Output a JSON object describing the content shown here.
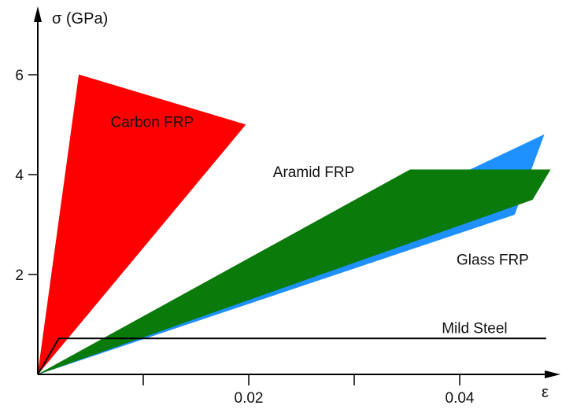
{
  "chart_data": {
    "type": "area",
    "title": "",
    "xlabel": "ε",
    "ylabel": "σ (GPa)",
    "xlim": [
      0,
      0.048
    ],
    "ylim": [
      0,
      6.9
    ],
    "x_ticks": [
      {
        "value": 0.01,
        "label": ""
      },
      {
        "value": 0.02,
        "label": "0.02"
      },
      {
        "value": 0.03,
        "label": ""
      },
      {
        "value": 0.04,
        "label": "0.04"
      }
    ],
    "y_ticks": [
      {
        "value": 2,
        "label": "2"
      },
      {
        "value": 4,
        "label": "4"
      },
      {
        "value": 6,
        "label": "6"
      }
    ],
    "grid": false,
    "legend": "none",
    "series": [
      {
        "name": "Glass FRP",
        "kind": "region",
        "color": "#1e90ff",
        "points": [
          [
            0,
            0
          ],
          [
            0.048,
            4.8
          ],
          [
            0.0452,
            3.2
          ]
        ]
      },
      {
        "name": "Aramid FRP",
        "kind": "region",
        "color": "#0a7a0a",
        "points": [
          [
            0,
            0
          ],
          [
            0.0353,
            4.1
          ],
          [
            0.0486,
            4.1
          ],
          [
            0.0469,
            3.5
          ]
        ]
      },
      {
        "name": "Carbon FRP",
        "kind": "region",
        "color": "#ff0000",
        "points": [
          [
            0,
            0
          ],
          [
            0.0039,
            6.0
          ],
          [
            0.0197,
            5.0
          ]
        ]
      },
      {
        "name": "Mild Steel",
        "kind": "line",
        "color": "#000000",
        "points": [
          [
            0,
            0
          ],
          [
            0.002,
            0.72
          ],
          [
            0.0482,
            0.72
          ]
        ]
      }
    ],
    "annotations": [
      {
        "text": "Carbon FRP",
        "x": 0.0069,
        "y": 4.95
      },
      {
        "text": "Aramid FRP",
        "x": 0.0223,
        "y": 3.95
      },
      {
        "text": "Glass FRP",
        "x": 0.0397,
        "y": 2.2
      },
      {
        "text": "Mild Steel",
        "x": 0.0383,
        "y": 0.83
      }
    ]
  }
}
